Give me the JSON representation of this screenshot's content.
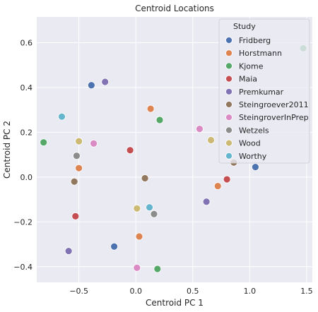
{
  "chart_data": {
    "type": "scatter",
    "title": "Centroid Locations",
    "xlabel": "Centroid PC 1",
    "ylabel": "Centroid PC 2",
    "xlim": [
      -0.87,
      1.55
    ],
    "ylim": [
      -0.47,
      0.715
    ],
    "xticks": [
      -0.5,
      0.0,
      0.5,
      1.0,
      1.5
    ],
    "xtick_labels": [
      "−0.5",
      "0.0",
      "0.5",
      "1.0",
      "1.5"
    ],
    "yticks": [
      -0.4,
      -0.2,
      0.0,
      0.2,
      0.4,
      0.6
    ],
    "ytick_labels": [
      "−0.4",
      "−0.2",
      "0.0",
      "0.2",
      "0.4",
      "0.6"
    ],
    "grid": true,
    "legend_title": "Study",
    "legend_position": "top-right",
    "series": [
      {
        "name": "Fridberg",
        "color": "#4c72b0",
        "points": [
          [
            -0.39,
            0.41
          ],
          [
            1.05,
            0.045
          ],
          [
            -0.19,
            -0.31
          ]
        ]
      },
      {
        "name": "Horstmann",
        "color": "#dd8452",
        "points": [
          [
            0.13,
            0.305
          ],
          [
            -0.5,
            0.04
          ],
          [
            0.72,
            -0.04
          ],
          [
            0.03,
            -0.265
          ]
        ]
      },
      {
        "name": "Kjome",
        "color": "#55a868",
        "points": [
          [
            1.47,
            0.575
          ],
          [
            0.21,
            0.255
          ],
          [
            -0.81,
            0.155
          ],
          [
            0.19,
            -0.41
          ]
        ]
      },
      {
        "name": "Maia",
        "color": "#c44e52",
        "points": [
          [
            -0.05,
            0.12
          ],
          [
            0.8,
            -0.01
          ],
          [
            -0.53,
            -0.175
          ]
        ]
      },
      {
        "name": "Premkumar",
        "color": "#8172b3",
        "points": [
          [
            -0.27,
            0.425
          ],
          [
            0.62,
            -0.11
          ],
          [
            -0.59,
            -0.33
          ]
        ]
      },
      {
        "name": "Steingroever2011",
        "color": "#937860",
        "points": [
          [
            0.86,
            0.065
          ],
          [
            0.08,
            -0.005
          ],
          [
            -0.54,
            -0.02
          ]
        ]
      },
      {
        "name": "SteingroverInPrep",
        "color": "#da8bc3",
        "points": [
          [
            0.56,
            0.215
          ],
          [
            -0.37,
            0.15
          ],
          [
            0.01,
            -0.405
          ]
        ]
      },
      {
        "name": "Wetzels",
        "color": "#8c8c8c",
        "points": [
          [
            -0.52,
            0.095
          ],
          [
            0.16,
            -0.165
          ]
        ]
      },
      {
        "name": "Wood",
        "color": "#ccb974",
        "points": [
          [
            0.66,
            0.165
          ],
          [
            -0.5,
            0.16
          ],
          [
            0.01,
            -0.14
          ]
        ]
      },
      {
        "name": "Worthy",
        "color": "#64b5cd",
        "points": [
          [
            -0.65,
            0.27
          ],
          [
            0.12,
            -0.135
          ]
        ]
      }
    ]
  }
}
